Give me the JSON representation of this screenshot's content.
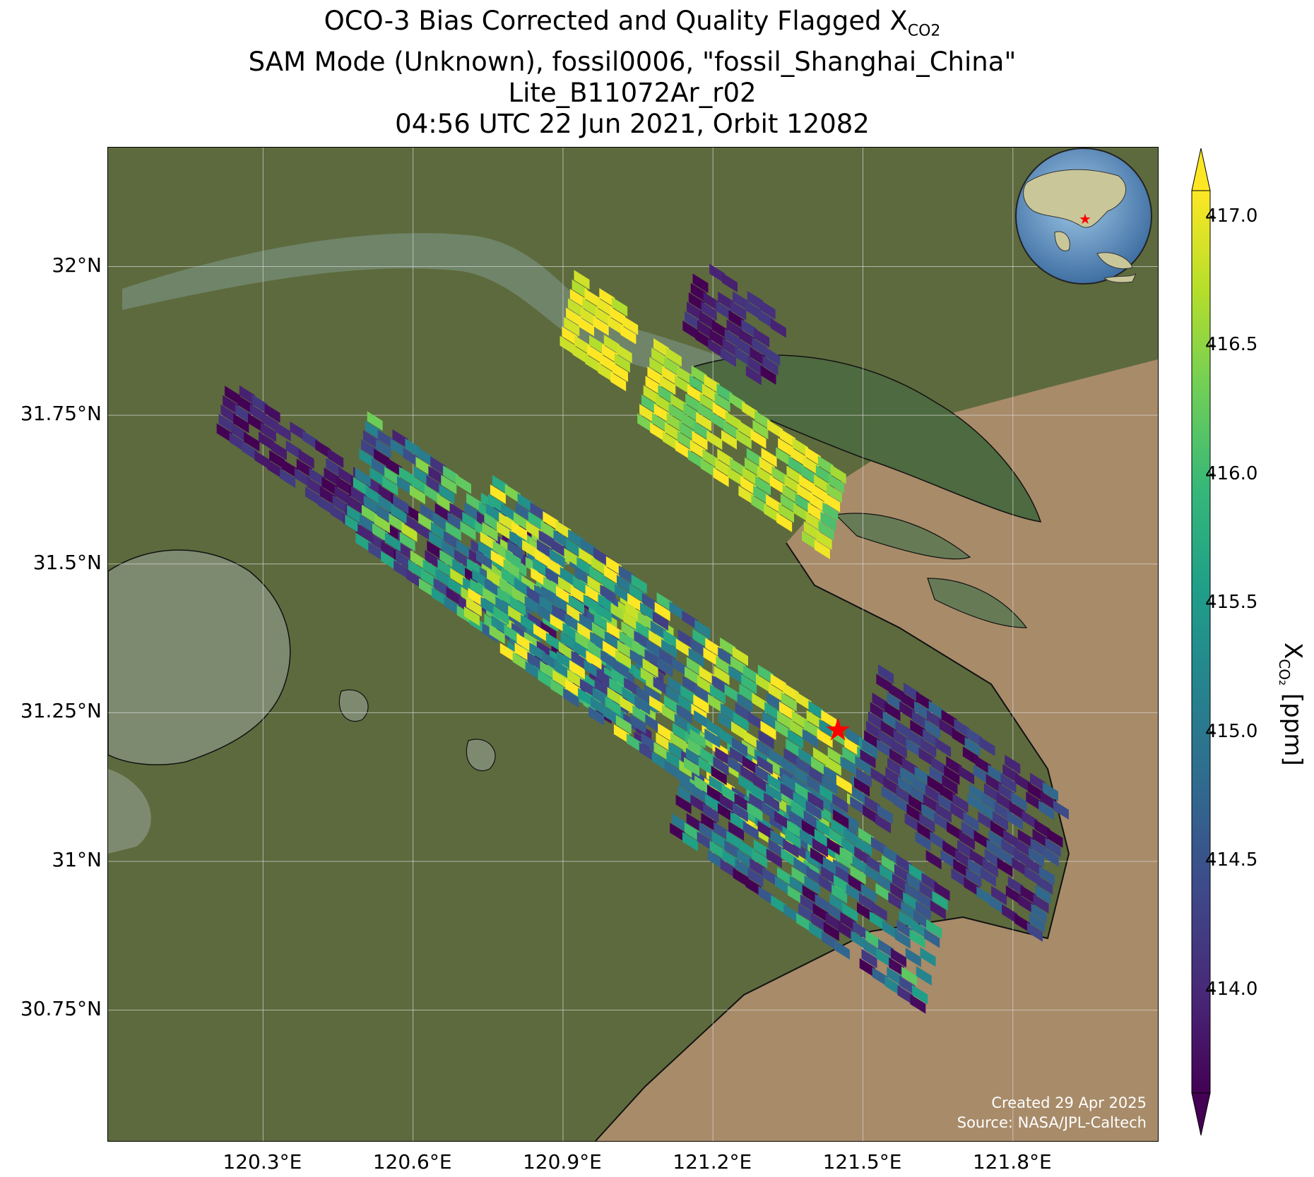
{
  "title": {
    "line1_prefix": "OCO-3 Bias Corrected and Quality Flagged X",
    "line1_sub": "CO2",
    "line2": "SAM Mode (Unknown), fossil0006, \"fossil_Shanghai_China\"",
    "line3": "Lite_B11072Ar_r02",
    "line4": "04:56 UTC 22 Jun 2021, Orbit 12082"
  },
  "map": {
    "lat_ticks": [
      "32°N",
      "31.75°N",
      "31.5°N",
      "31.25°N",
      "31°N",
      "30.75°N"
    ],
    "lon_ticks": [
      "120.3°E",
      "120.6°E",
      "120.9°E",
      "121.2°E",
      "121.5°E",
      "121.8°E"
    ],
    "lat_range": [
      30.53,
      32.2
    ],
    "lon_range": [
      119.99,
      122.09
    ],
    "target": {
      "lon": 121.45,
      "lat": 31.22,
      "marker": "red-star-icon"
    },
    "credit_line1": "Created 29 Apr 2025",
    "credit_line2": "Source: NASA/JPL-Caltech",
    "inset": "globe-icon"
  },
  "colorbar": {
    "ticks": [
      "417.0",
      "416.5",
      "416.0",
      "415.5",
      "415.0",
      "414.5",
      "414.0"
    ],
    "tick_values": [
      417.0,
      416.5,
      416.0,
      415.5,
      415.0,
      414.5,
      414.0
    ],
    "range": [
      413.6,
      417.1
    ],
    "label_prefix": "X",
    "label_sub": "CO₂",
    "label_suffix": " [ppm]",
    "colormap": "viridis",
    "colors": [
      "#440154",
      "#482878",
      "#3e4989",
      "#31688e",
      "#26828e",
      "#1f9e89",
      "#35b779",
      "#6ece58",
      "#b5de2b",
      "#fde725"
    ]
  },
  "colors": {
    "land": "#5f6a3c",
    "water": "#a98a6a",
    "target_star": "#ff0000"
  }
}
